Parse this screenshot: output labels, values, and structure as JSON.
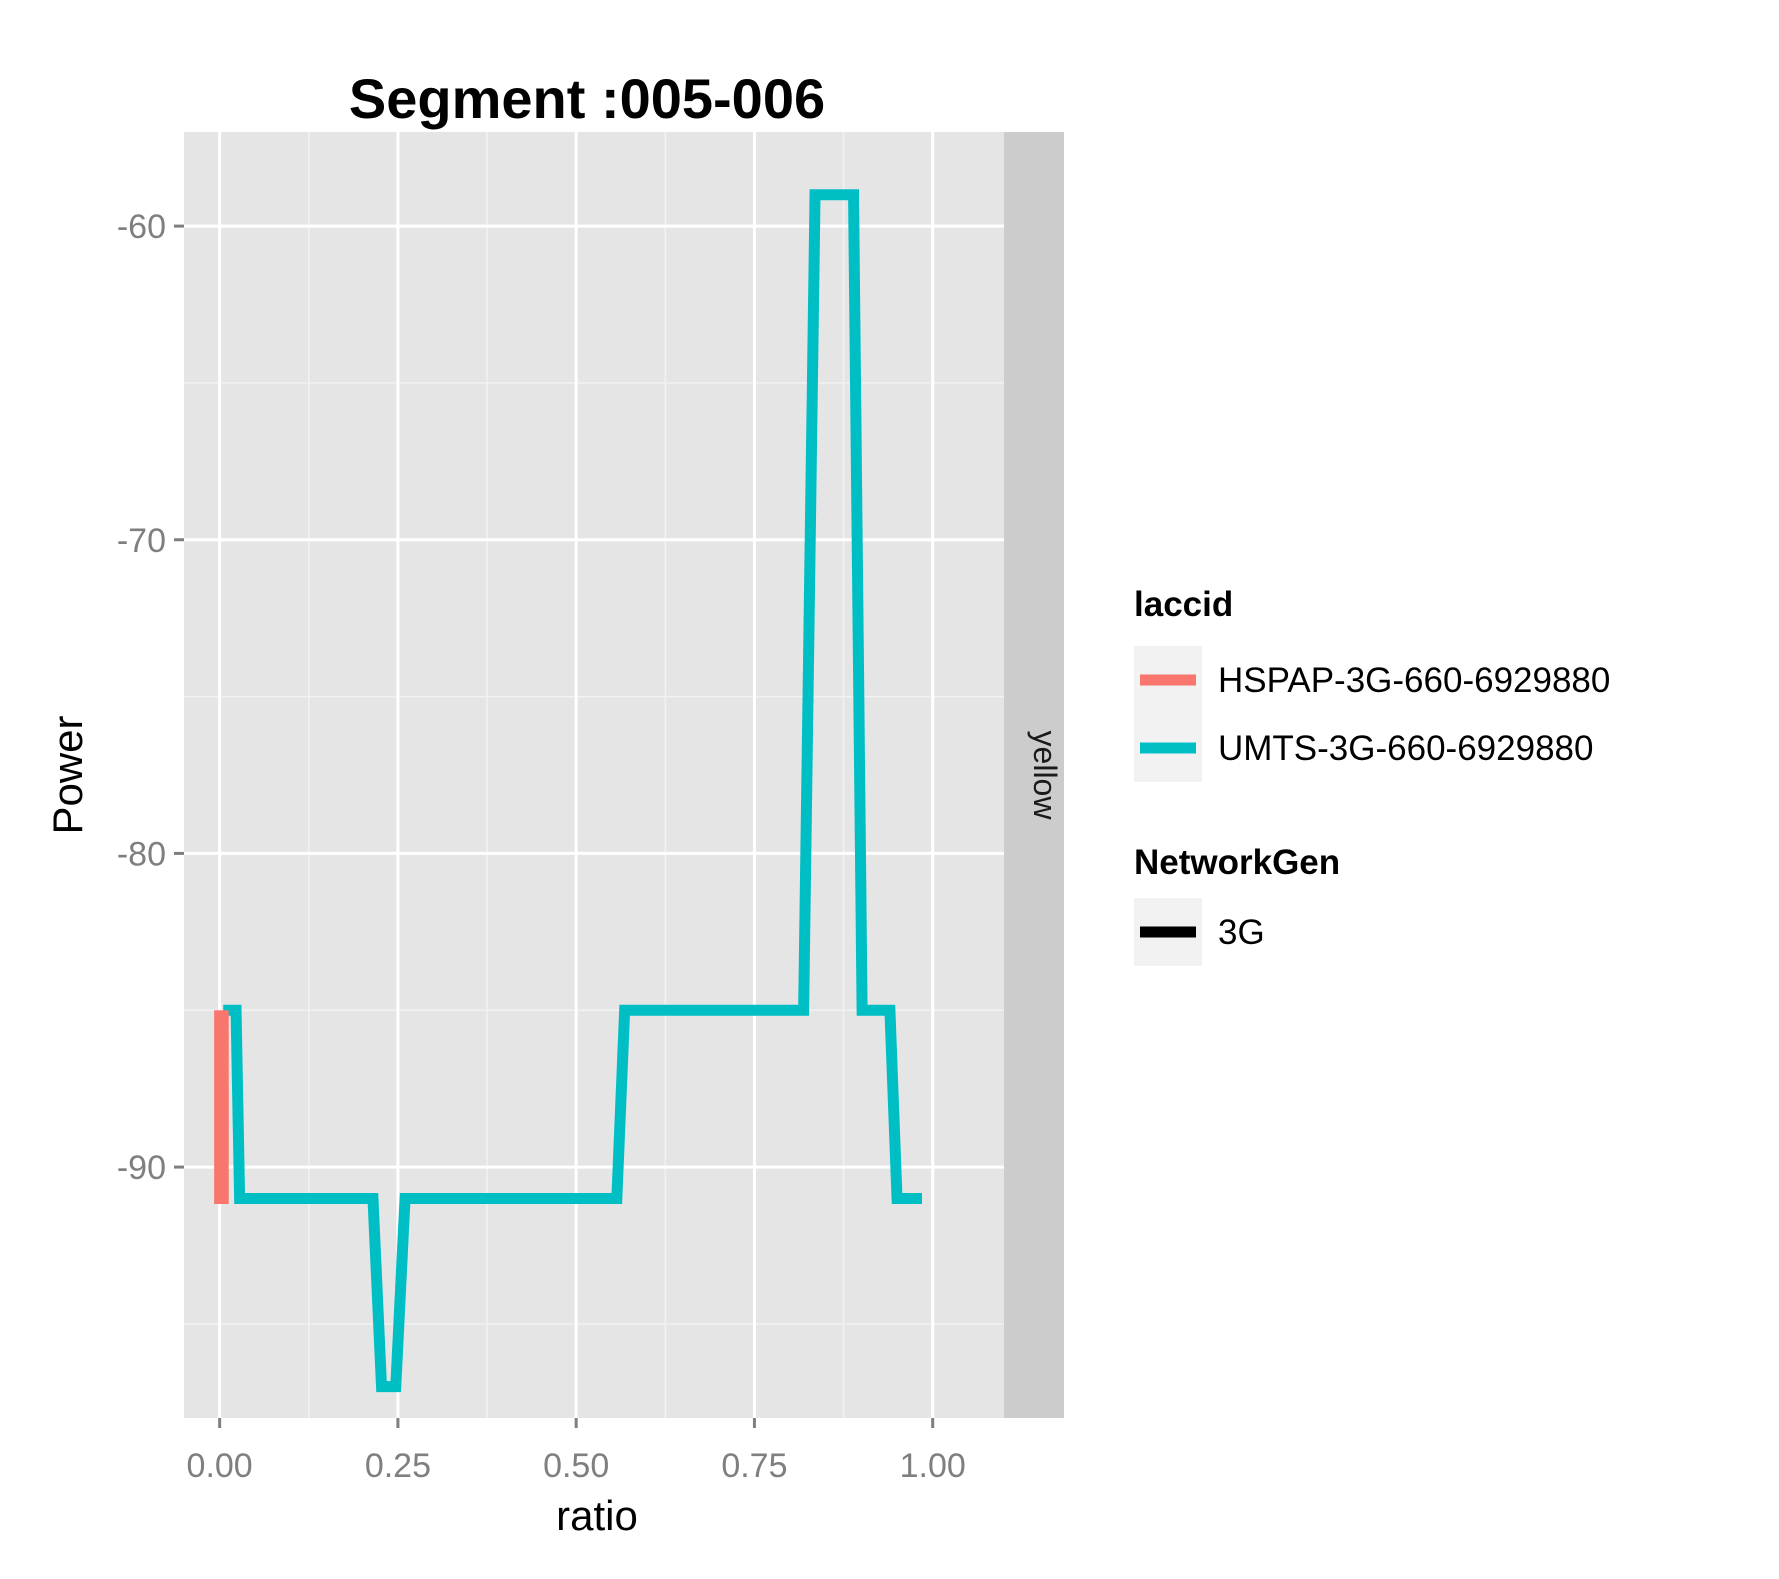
{
  "chart_data": {
    "type": "line",
    "title": "Segment :005-006",
    "xlabel": "ratio",
    "ylabel": "Power",
    "xlim": [
      -0.05,
      1.1
    ],
    "ylim": [
      -98,
      -57
    ],
    "x_ticks": [
      0.0,
      0.25,
      0.5,
      0.75,
      1.0
    ],
    "x_tick_labels": [
      "0.00",
      "0.25",
      "0.50",
      "0.75",
      "1.00"
    ],
    "y_ticks": [
      -90,
      -80,
      -70,
      -60
    ],
    "y_tick_labels": [
      "-90",
      "-80",
      "-70",
      "-60"
    ],
    "grid": true,
    "facet_label": "yellow",
    "legend": {
      "placement": "right",
      "groups": [
        {
          "title": "laccid",
          "items": [
            {
              "label": "HSPAP-3G-660-6929880",
              "color": "#F8766D"
            },
            {
              "label": "UMTS-3G-660-6929880",
              "color": "#00BFC4"
            }
          ]
        },
        {
          "title": "NetworkGen",
          "items": [
            {
              "label": "3G",
              "color": "#000000"
            }
          ]
        }
      ]
    },
    "series": [
      {
        "name": "HSPAP-3G-660-6929880",
        "color": "#F8766D",
        "points": [
          [
            0.0,
            -85
          ],
          [
            0.0,
            -91
          ],
          [
            0.005,
            -91
          ],
          [
            0.005,
            -85
          ]
        ]
      },
      {
        "name": "UMTS-3G-660-6929880",
        "color": "#00BFC4",
        "points": [
          [
            0.005,
            -85
          ],
          [
            0.023,
            -85
          ],
          [
            0.028,
            -91
          ],
          [
            0.215,
            -91
          ],
          [
            0.227,
            -97
          ],
          [
            0.247,
            -97
          ],
          [
            0.26,
            -91
          ],
          [
            0.557,
            -91
          ],
          [
            0.568,
            -85
          ],
          [
            0.819,
            -85
          ],
          [
            0.835,
            -59
          ],
          [
            0.889,
            -59
          ],
          [
            0.901,
            -85
          ],
          [
            0.94,
            -85
          ],
          [
            0.95,
            -91
          ],
          [
            0.985,
            -91
          ]
        ]
      }
    ]
  }
}
